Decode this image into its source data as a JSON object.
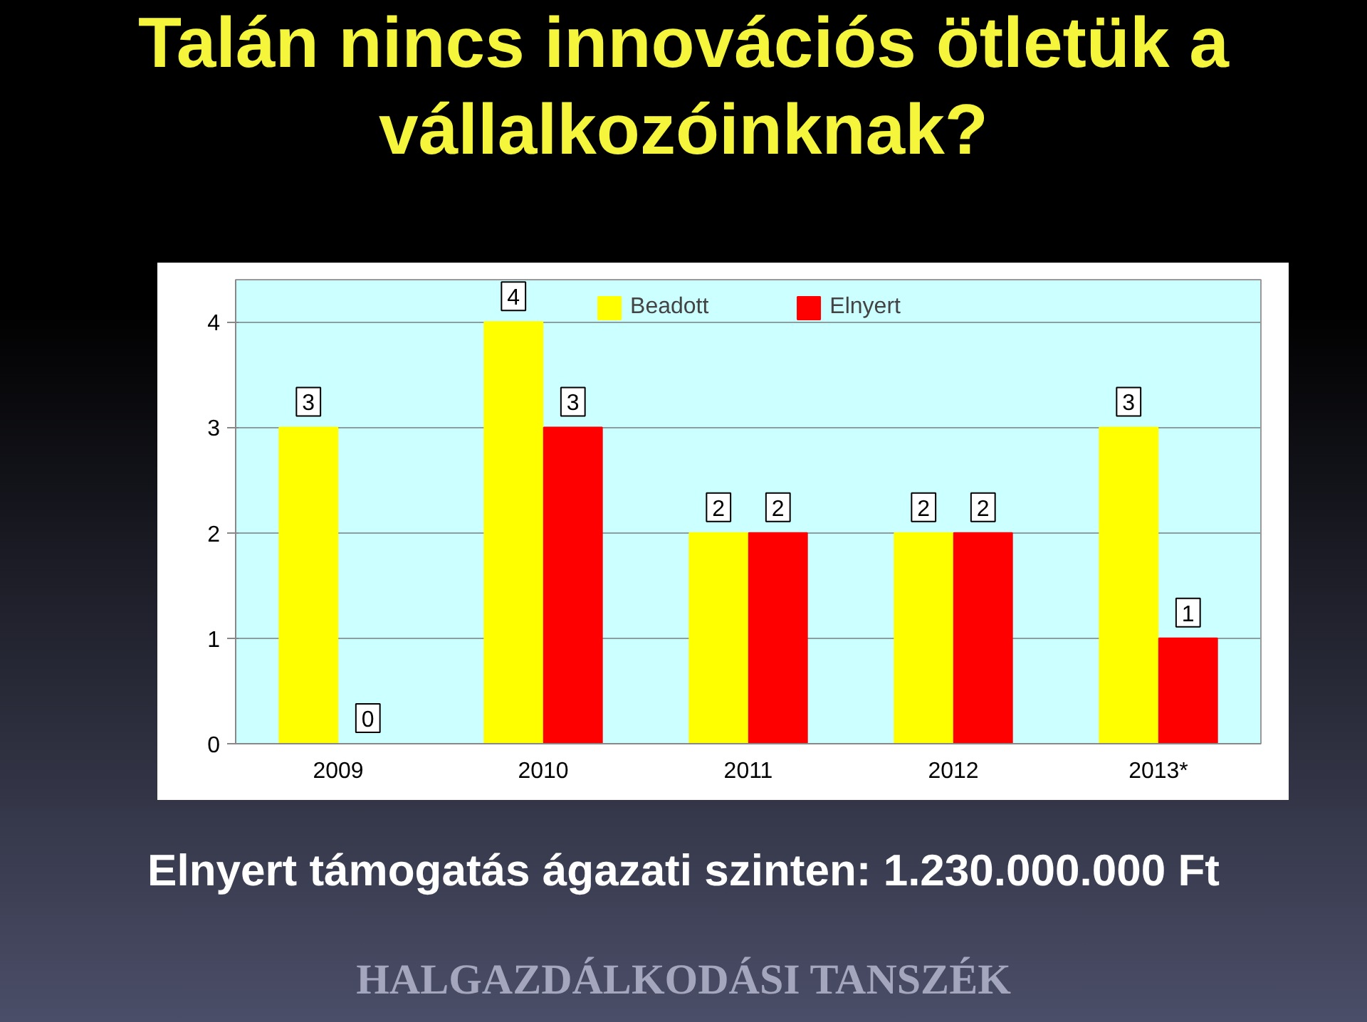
{
  "chart_data": {
    "type": "bar",
    "title": "Talán nincs innovációs ötletük a vállalkozóinknak?",
    "categories": [
      "2009",
      "2010",
      "2011",
      "2012",
      "2013*"
    ],
    "series": [
      {
        "name": "Beadott",
        "color": "#ffff00",
        "values": [
          3,
          4,
          2,
          2,
          3
        ]
      },
      {
        "name": "Elnyert",
        "color": "#ff0000",
        "values": [
          0,
          3,
          2,
          2,
          1
        ]
      }
    ],
    "ylim": [
      0,
      4.4
    ],
    "yticks": [
      0,
      1,
      2,
      3,
      4
    ],
    "grid": "y",
    "legend": "top",
    "data_labels": true,
    "annotations": [
      "Elnyert támogatás ágazati szinten: 1.230.000.000 Ft",
      "HALGAZDÁLKODÁSI TANSZÉK"
    ]
  }
}
